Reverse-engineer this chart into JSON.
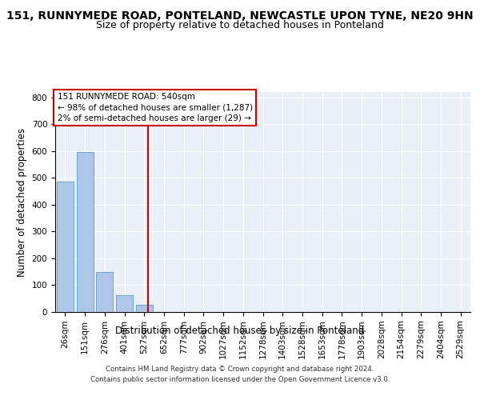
{
  "title_line1": "151, RUNNYMEDE ROAD, PONTELAND, NEWCASTLE UPON TYNE, NE20 9HN",
  "title_line2": "Size of property relative to detached houses in Ponteland",
  "xlabel": "Distribution of detached houses by size in Ponteland",
  "ylabel": "Number of detached properties",
  "footer_line1": "Contains HM Land Registry data © Crown copyright and database right 2024.",
  "footer_line2": "Contains public sector information licensed under the Open Government Licence v3.0.",
  "bar_labels": [
    "26sqm",
    "151sqm",
    "276sqm",
    "401sqm",
    "527sqm",
    "652sqm",
    "777sqm",
    "902sqm",
    "1027sqm",
    "1152sqm",
    "1278sqm",
    "1403sqm",
    "1528sqm",
    "1653sqm",
    "1778sqm",
    "1903sqm",
    "2028sqm",
    "2154sqm",
    "2279sqm",
    "2404sqm",
    "2529sqm"
  ],
  "bar_values": [
    487,
    595,
    148,
    62,
    27,
    0,
    0,
    0,
    0,
    0,
    0,
    0,
    0,
    0,
    0,
    0,
    0,
    0,
    0,
    0,
    0
  ],
  "bar_color": "#aec6e8",
  "bar_edge_color": "#5a9bc9",
  "background_color": "#eaf0f8",
  "grid_color": "#ffffff",
  "vline_x": 4.18,
  "vline_color": "#cc0000",
  "annotation_text": "151 RUNNYMEDE ROAD: 540sqm\n← 98% of detached houses are smaller (1,287)\n2% of semi-detached houses are larger (29) →",
  "annotation_box_color": "#ffffff",
  "annotation_box_edge_color": "#cc0000",
  "ylim": [
    0,
    820
  ],
  "yticks": [
    0,
    100,
    200,
    300,
    400,
    500,
    600,
    700,
    800
  ],
  "title_fontsize": 10,
  "subtitle_fontsize": 9,
  "axis_label_fontsize": 8.5,
  "tick_fontsize": 7.5,
  "annotation_fontsize": 7.5,
  "fig_width": 6.0,
  "fig_height": 5.0,
  "fig_dpi": 100
}
